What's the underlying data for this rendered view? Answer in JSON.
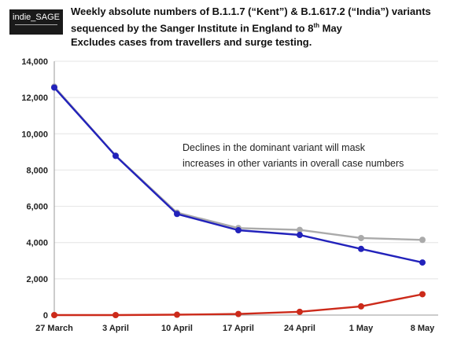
{
  "logo": {
    "text": "indie_SAGE"
  },
  "header": {
    "title_line1": "Weekly absolute numbers of B.1.1.7 (“Kent”) & B.1.617.2 (“India”) variants",
    "title_line2_main": "sequenced by the Sanger Institute in England to 8",
    "title_line2_sup": "th",
    "title_line2_end": " May",
    "subtitle": "Excludes cases from travellers and surge testing."
  },
  "chart_data": {
    "type": "line",
    "categories": [
      "27 March",
      "3 April",
      "10 April",
      "17 April",
      "24 April",
      "1 May",
      "8 May"
    ],
    "series": [
      {
        "name": "",
        "color": "#aaaaaa",
        "values": [
          12600,
          8800,
          5650,
          4800,
          4700,
          4250,
          4150
        ]
      },
      {
        "name": "",
        "color": "#2222bb",
        "values": [
          12550,
          8780,
          5580,
          4680,
          4420,
          3650,
          2900
        ]
      },
      {
        "name": "",
        "color": "#cc2a1a",
        "values": [
          0,
          0,
          20,
          60,
          180,
          480,
          1150
        ]
      }
    ],
    "ylim": [
      0,
      14000
    ],
    "yticks": [
      "0",
      "2,000",
      "4,000",
      "6,000",
      "8,000",
      "10,000",
      "12,000",
      "14,000"
    ],
    "ytick_values": [
      0,
      2000,
      4000,
      6000,
      8000,
      10000,
      12000,
      14000
    ],
    "annotation_line1": "Declines in the dominant variant will mask",
    "annotation_line2": "increases in other variants in overall case numbers",
    "xlabel": "",
    "ylabel": ""
  }
}
